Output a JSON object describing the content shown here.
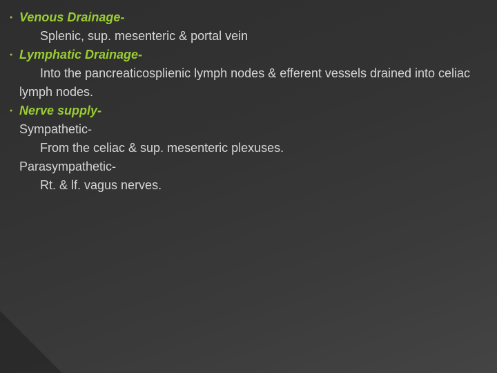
{
  "slide": {
    "background_gradient": [
      "#2e2e2e",
      "#333333",
      "#3a3a3a",
      "#444444"
    ],
    "heading_color": "#9acd32",
    "body_color": "#d6d6d6",
    "bullet_color": "#9acd32",
    "font_size_pt": 18,
    "bullets": [
      {
        "heading": "Venous Drainage-",
        "lines": [
          "Splenic, sup. mesenteric & portal vein"
        ]
      },
      {
        "heading": "Lymphatic Drainage-",
        "lines": [
          "Into the pancreaticosplienic lymph nodes & efferent vessels drained into celiac lymph nodes."
        ]
      },
      {
        "heading": "Nerve supply-",
        "sub": [
          {
            "label": "Sympathetic-",
            "lines": [
              "From the celiac & sup. mesenteric plexuses."
            ]
          },
          {
            "label": "Parasympathetic-",
            "lines": [
              "Rt. & lf. vagus nerves."
            ]
          }
        ]
      }
    ]
  }
}
